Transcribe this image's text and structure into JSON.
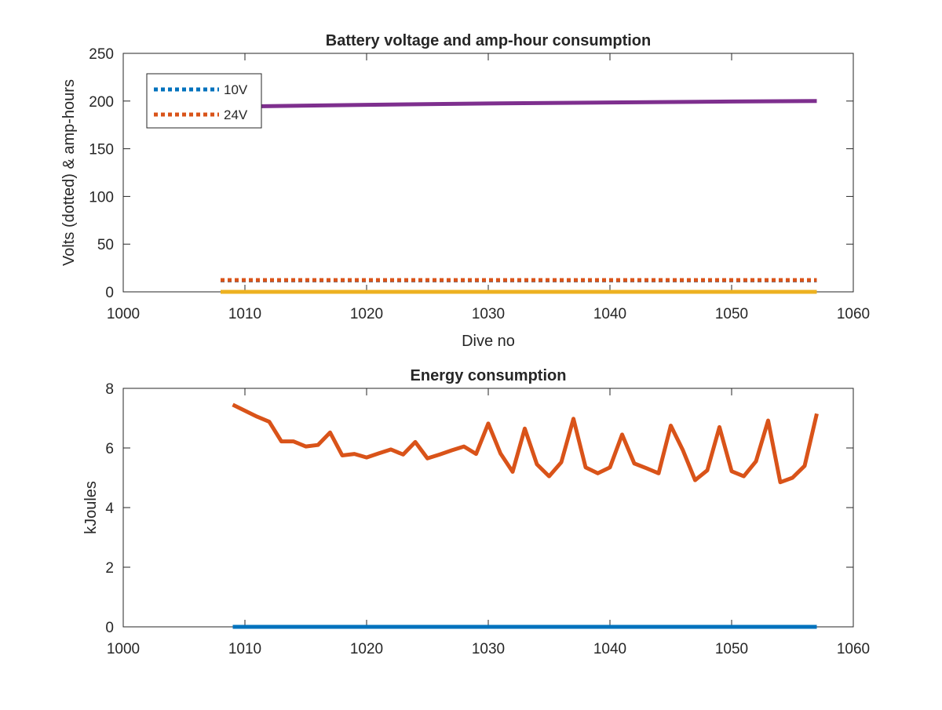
{
  "chart_data": [
    {
      "type": "line",
      "title": "Battery voltage and amp-hour consumption",
      "xlabel": "Dive no",
      "ylabel": "Volts (dotted) & amp-hours",
      "xlim": [
        1000,
        1060
      ],
      "ylim": [
        0,
        250
      ],
      "xticks": [
        "1000",
        "1010",
        "1020",
        "1030",
        "1040",
        "1050",
        "1060"
      ],
      "yticks": [
        "0",
        "50",
        "100",
        "150",
        "200",
        "250"
      ],
      "legend": {
        "placement": "top-left",
        "entries": [
          "10V",
          "24V"
        ]
      },
      "series": [
        {
          "name": "10V",
          "style": "dotted",
          "color": "#0072BD",
          "x": [
            1008,
            1057
          ],
          "y": [
            12,
            12
          ]
        },
        {
          "name": "24V",
          "style": "dotted",
          "color": "#D95319",
          "x": [
            1008,
            1057
          ],
          "y": [
            12.3,
            12.3
          ]
        },
        {
          "style": "solid",
          "color": "#EDB120",
          "x": [
            1008,
            1057
          ],
          "y": [
            0,
            0
          ]
        },
        {
          "style": "solid",
          "color": "#7E2F8E",
          "x": [
            1008,
            1020,
            1030,
            1040,
            1050,
            1057
          ],
          "y": [
            194,
            196,
            197.5,
            198.5,
            199.5,
            200
          ]
        }
      ],
      "grid": false
    },
    {
      "type": "line",
      "title": "Energy consumption",
      "xlabel": "",
      "ylabel": "kJoules",
      "xlim": [
        1000,
        1060
      ],
      "ylim": [
        0,
        8
      ],
      "xticks": [
        "1000",
        "1010",
        "1020",
        "1030",
        "1040",
        "1050",
        "1060"
      ],
      "yticks": [
        "0",
        "2",
        "4",
        "6",
        "8"
      ],
      "series": [
        {
          "style": "solid",
          "color": "#0072BD",
          "x": [
            1009,
            1057
          ],
          "y": [
            0,
            0
          ]
        },
        {
          "style": "solid",
          "color": "#D95319",
          "x": [
            1009,
            1010,
            1011,
            1012,
            1013,
            1014,
            1015,
            1016,
            1017,
            1018,
            1019,
            1020,
            1021,
            1022,
            1023,
            1024,
            1025,
            1026,
            1027,
            1028,
            1029,
            1030,
            1031,
            1032,
            1033,
            1034,
            1035,
            1036,
            1037,
            1038,
            1039,
            1040,
            1041,
            1042,
            1043,
            1044,
            1045,
            1046,
            1047,
            1048,
            1049,
            1050,
            1051,
            1052,
            1053,
            1054,
            1055,
            1056,
            1057
          ],
          "y": [
            7.45,
            7.25,
            7.05,
            6.88,
            6.22,
            6.22,
            6.05,
            6.1,
            6.52,
            5.75,
            5.8,
            5.68,
            5.82,
            5.95,
            5.78,
            6.2,
            5.65,
            5.78,
            5.92,
            6.05,
            5.8,
            6.82,
            5.82,
            5.2,
            6.65,
            5.45,
            5.05,
            5.52,
            6.98,
            5.35,
            5.15,
            5.35,
            6.45,
            5.48,
            5.32,
            5.15,
            6.75,
            5.92,
            4.92,
            5.25,
            6.7,
            5.22,
            5.05,
            5.55,
            6.92,
            4.85,
            5.0,
            5.4,
            7.15
          ]
        }
      ],
      "grid": false
    }
  ]
}
